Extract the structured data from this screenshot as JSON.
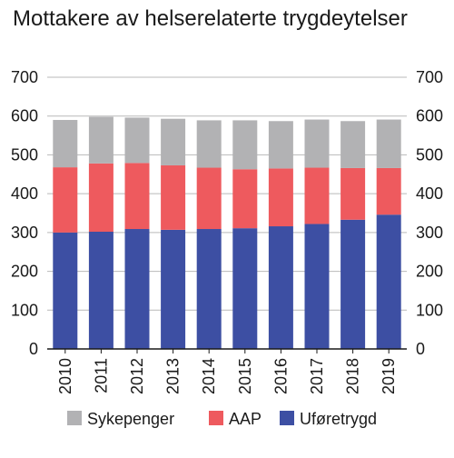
{
  "chart_data": {
    "type": "bar",
    "stacked": true,
    "title": "Mottakere av helserelaterte trygdeytelser",
    "xlabel": "",
    "ylabel": "",
    "categories": [
      "2010",
      "2011",
      "2012",
      "2013",
      "2014",
      "2015",
      "2016",
      "2017",
      "2018",
      "2019"
    ],
    "ylim": [
      0,
      700
    ],
    "yticks": [
      0,
      100,
      200,
      300,
      400,
      500,
      600,
      700
    ],
    "grid": true,
    "dual_y_axis": true,
    "legend_position": "bottom",
    "series": [
      {
        "name": "Uføretrygd",
        "color": "#3d4fa3",
        "values": [
          300,
          302,
          309,
          307,
          309,
          311,
          316,
          322,
          333,
          346
        ]
      },
      {
        "name": "AAP",
        "color": "#ee5a5e",
        "values": [
          168,
          176,
          170,
          166,
          158,
          152,
          149,
          145,
          133,
          120
        ]
      },
      {
        "name": "Sykepenger",
        "color": "#b2b2b4",
        "values": [
          122,
          120,
          117,
          120,
          122,
          126,
          122,
          124,
          121,
          125
        ]
      }
    ],
    "legend_order": [
      "Sykepenger",
      "AAP",
      "Uføretrygd"
    ]
  }
}
